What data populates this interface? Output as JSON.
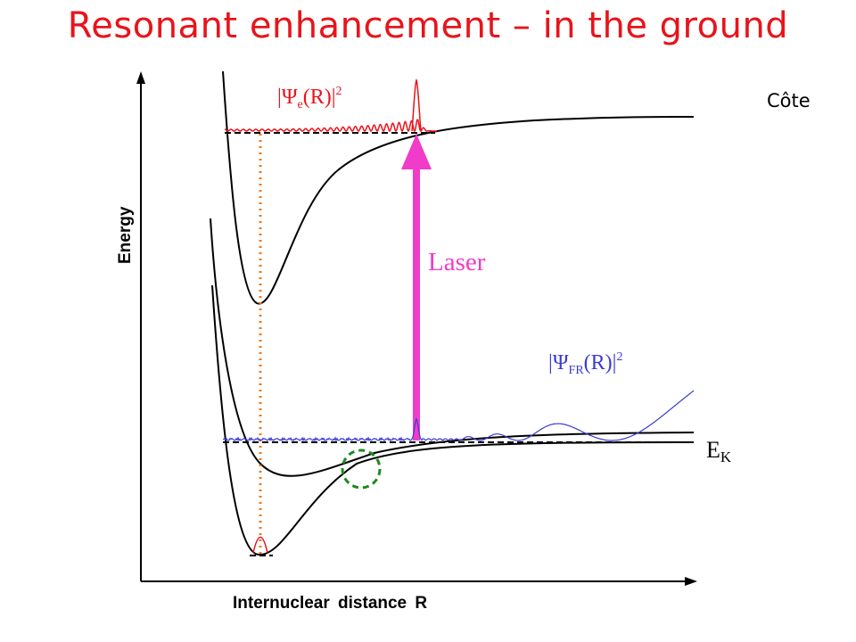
{
  "title": "Resonant enhancement – in the ground",
  "corner_label": "Côte",
  "axes": {
    "y_label": "Energy",
    "x_label": "Internuclear distance R"
  },
  "labels": {
    "laser": "Laser",
    "psi_e": {
      "open": "|",
      "psi": "Ψ",
      "sub": "e",
      "arg": "(R)|",
      "sup": "2"
    },
    "psi_fr": {
      "open": "|",
      "psi": "Ψ",
      "sub": "FR",
      "arg": "(R)|",
      "sup": "2"
    },
    "ek": {
      "main": "E",
      "sub": "K"
    }
  },
  "colors": {
    "title": "#e8141b",
    "laser": "#f03cc8",
    "psi_e": "#e8141b",
    "psi_fr": "#3a3ad6",
    "dotted_line": "#e87a1e",
    "circle": "#1e8a1e",
    "curves": "#000000"
  }
}
